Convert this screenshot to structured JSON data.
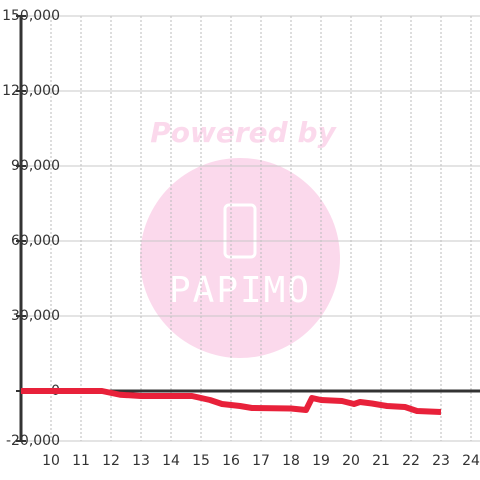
{
  "watermark": {
    "top": "Powered by",
    "brand": "PAPIMO"
  },
  "chart_data": {
    "type": "line",
    "x": [
      9,
      11.7,
      12.3,
      13,
      14.7,
      15.3,
      15.7,
      16.3,
      16.7,
      18,
      18.5,
      18.7,
      19,
      19.7,
      20.1,
      20.3,
      20.7,
      21.2,
      21.8,
      22.2,
      23
    ],
    "series": [
      {
        "color": "#e8213a",
        "values": [
          0,
          0,
          -1500,
          -2000,
          -2000,
          -3600,
          -5200,
          -6000,
          -6800,
          -7000,
          -7600,
          -2800,
          -3600,
          -4000,
          -5200,
          -4400,
          -5000,
          -6000,
          -6400,
          -8000,
          -8400
        ]
      }
    ],
    "xlim": [
      9,
      24.3
    ],
    "xticks": [
      10,
      11,
      12,
      13,
      14,
      15,
      16,
      17,
      18,
      19,
      20,
      21,
      22,
      23,
      24
    ],
    "ylim": [
      -20000,
      150000
    ],
    "yticks": [
      {
        "value": -20000,
        "label": "-20,000"
      },
      0,
      {
        "value": 30000,
        "label": "30,000"
      },
      {
        "value": 60000,
        "label": "60,000"
      },
      {
        "value": 90000,
        "label": "90,000"
      },
      {
        "value": 120000,
        "label": "120,000"
      },
      {
        "value": 150000,
        "label": "150,000"
      }
    ],
    "grid": true
  }
}
